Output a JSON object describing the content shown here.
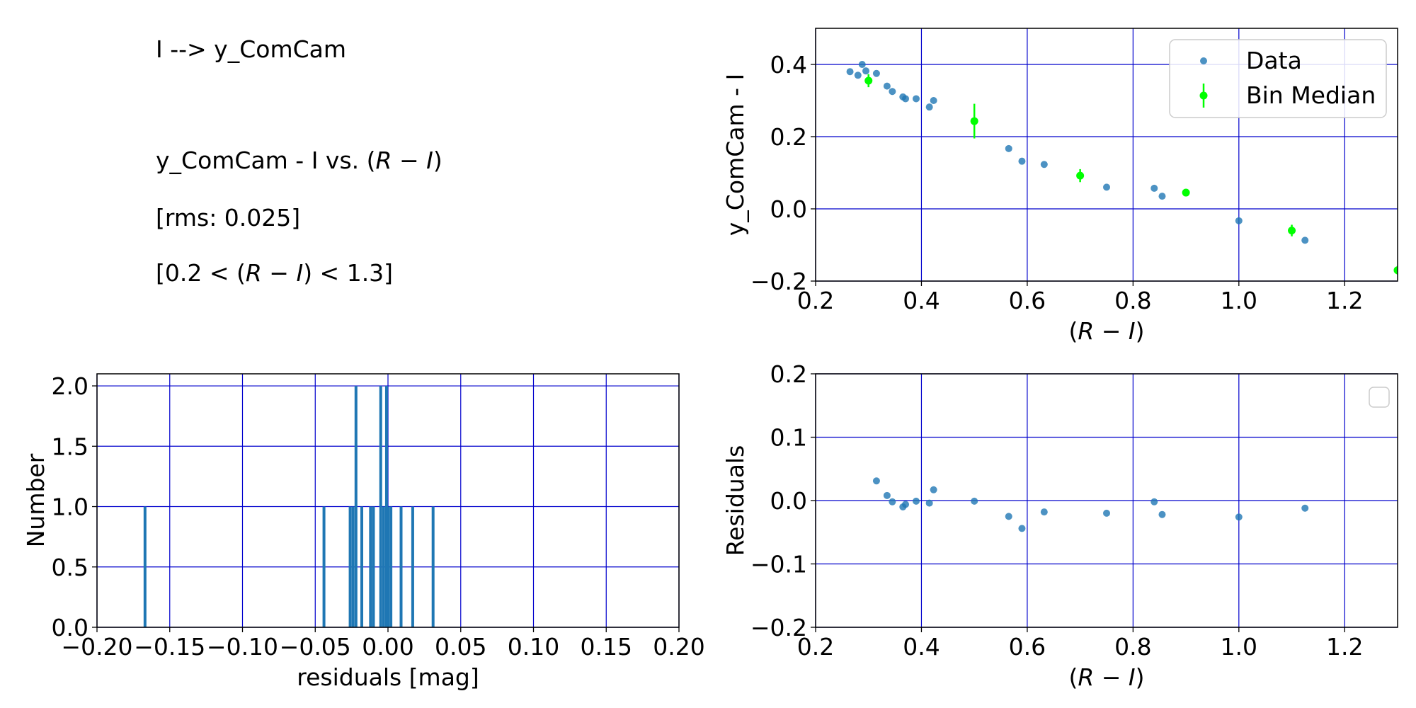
{
  "info": {
    "line1": "I --> y_ComCam",
    "line2": "y_ComCam - I vs. (R - I)",
    "line3": "[rms: 0.025]",
    "line4": "[0.2 < (R - I) < 1.3]"
  },
  "colors": {
    "data": "#1f77b4",
    "median": "#00ff00",
    "grid": "#0000cc"
  },
  "chart_data": [
    {
      "id": "color-term",
      "type": "scatter",
      "xlabel": "(R - I)",
      "ylabel": "y_ComCam - I",
      "xlim": [
        0.2,
        1.3
      ],
      "ylim": [
        -0.2,
        0.5
      ],
      "xticks": [
        "0.2",
        "0.4",
        "0.6",
        "0.8",
        "1.0",
        "1.2"
      ],
      "yticks": [
        "−0.2",
        "0.0",
        "0.2",
        "0.4"
      ],
      "grid": true,
      "legend_placement": "top-right",
      "series": [
        {
          "name": "Data",
          "x": [
            0.265,
            0.28,
            0.288,
            0.295,
            0.315,
            0.335,
            0.345,
            0.365,
            0.37,
            0.39,
            0.415,
            0.423,
            0.565,
            0.59,
            0.632,
            0.75,
            0.84,
            0.855,
            1.0,
            1.125
          ],
          "y": [
            0.38,
            0.37,
            0.4,
            0.382,
            0.375,
            0.34,
            0.325,
            0.31,
            0.305,
            0.305,
            0.282,
            0.3,
            0.167,
            0.132,
            0.123,
            0.06,
            0.057,
            0.035,
            -0.033,
            -0.087
          ]
        },
        {
          "name": "Bin Median",
          "x": [
            0.3,
            0.5,
            0.7,
            0.9,
            1.1,
            1.3
          ],
          "y": [
            0.355,
            0.243,
            0.092,
            0.045,
            -0.06,
            -0.17
          ],
          "yerr": [
            0.018,
            0.048,
            0.018,
            0.008,
            0.016,
            0.012
          ]
        }
      ]
    },
    {
      "id": "histogram",
      "type": "bar",
      "xlabel": "residuals [mag]",
      "ylabel": "Number",
      "xlim": [
        -0.2,
        0.2
      ],
      "ylim": [
        0,
        2.1
      ],
      "xticks": [
        "−0.20",
        "−0.15",
        "−0.10",
        "−0.05",
        "0.00",
        "0.05",
        "0.10",
        "0.15",
        "0.20"
      ],
      "yticks": [
        "0.0",
        "0.5",
        "1.0",
        "1.5",
        "2.0"
      ],
      "grid": true,
      "bins": [
        {
          "x": -0.167,
          "count": 1
        },
        {
          "x": -0.044,
          "count": 1
        },
        {
          "x": -0.026,
          "count": 1
        },
        {
          "x": -0.024,
          "count": 1
        },
        {
          "x": -0.022,
          "count": 2
        },
        {
          "x": -0.018,
          "count": 1
        },
        {
          "x": -0.012,
          "count": 1
        },
        {
          "x": -0.01,
          "count": 1
        },
        {
          "x": -0.005,
          "count": 2
        },
        {
          "x": -0.003,
          "count": 1
        },
        {
          "x": -0.001,
          "count": 2
        },
        {
          "x": 0.0,
          "count": 1
        },
        {
          "x": 0.002,
          "count": 1
        },
        {
          "x": 0.009,
          "count": 1
        },
        {
          "x": 0.017,
          "count": 1
        },
        {
          "x": 0.031,
          "count": 1
        }
      ]
    },
    {
      "id": "residuals",
      "type": "scatter",
      "xlabel": "(R - I)",
      "ylabel": "Residuals",
      "xlim": [
        0.2,
        1.3
      ],
      "ylim": [
        -0.2,
        0.2
      ],
      "xticks": [
        "0.2",
        "0.4",
        "0.6",
        "0.8",
        "1.0",
        "1.2"
      ],
      "yticks": [
        "−0.2",
        "−0.1",
        "0.0",
        "0.1",
        "0.2"
      ],
      "grid": true,
      "legend_placement": "top-right",
      "series": [
        {
          "x": [
            0.315,
            0.335,
            0.345,
            0.365,
            0.37,
            0.39,
            0.415,
            0.423,
            0.5,
            0.565,
            0.59,
            0.632,
            0.75,
            0.84,
            0.855,
            1.0,
            1.125
          ],
          "y": [
            0.031,
            0.008,
            -0.002,
            -0.01,
            -0.006,
            -0.001,
            -0.004,
            0.017,
            -0.001,
            -0.025,
            -0.044,
            -0.018,
            -0.02,
            -0.002,
            -0.022,
            -0.026,
            -0.012
          ]
        }
      ]
    }
  ]
}
